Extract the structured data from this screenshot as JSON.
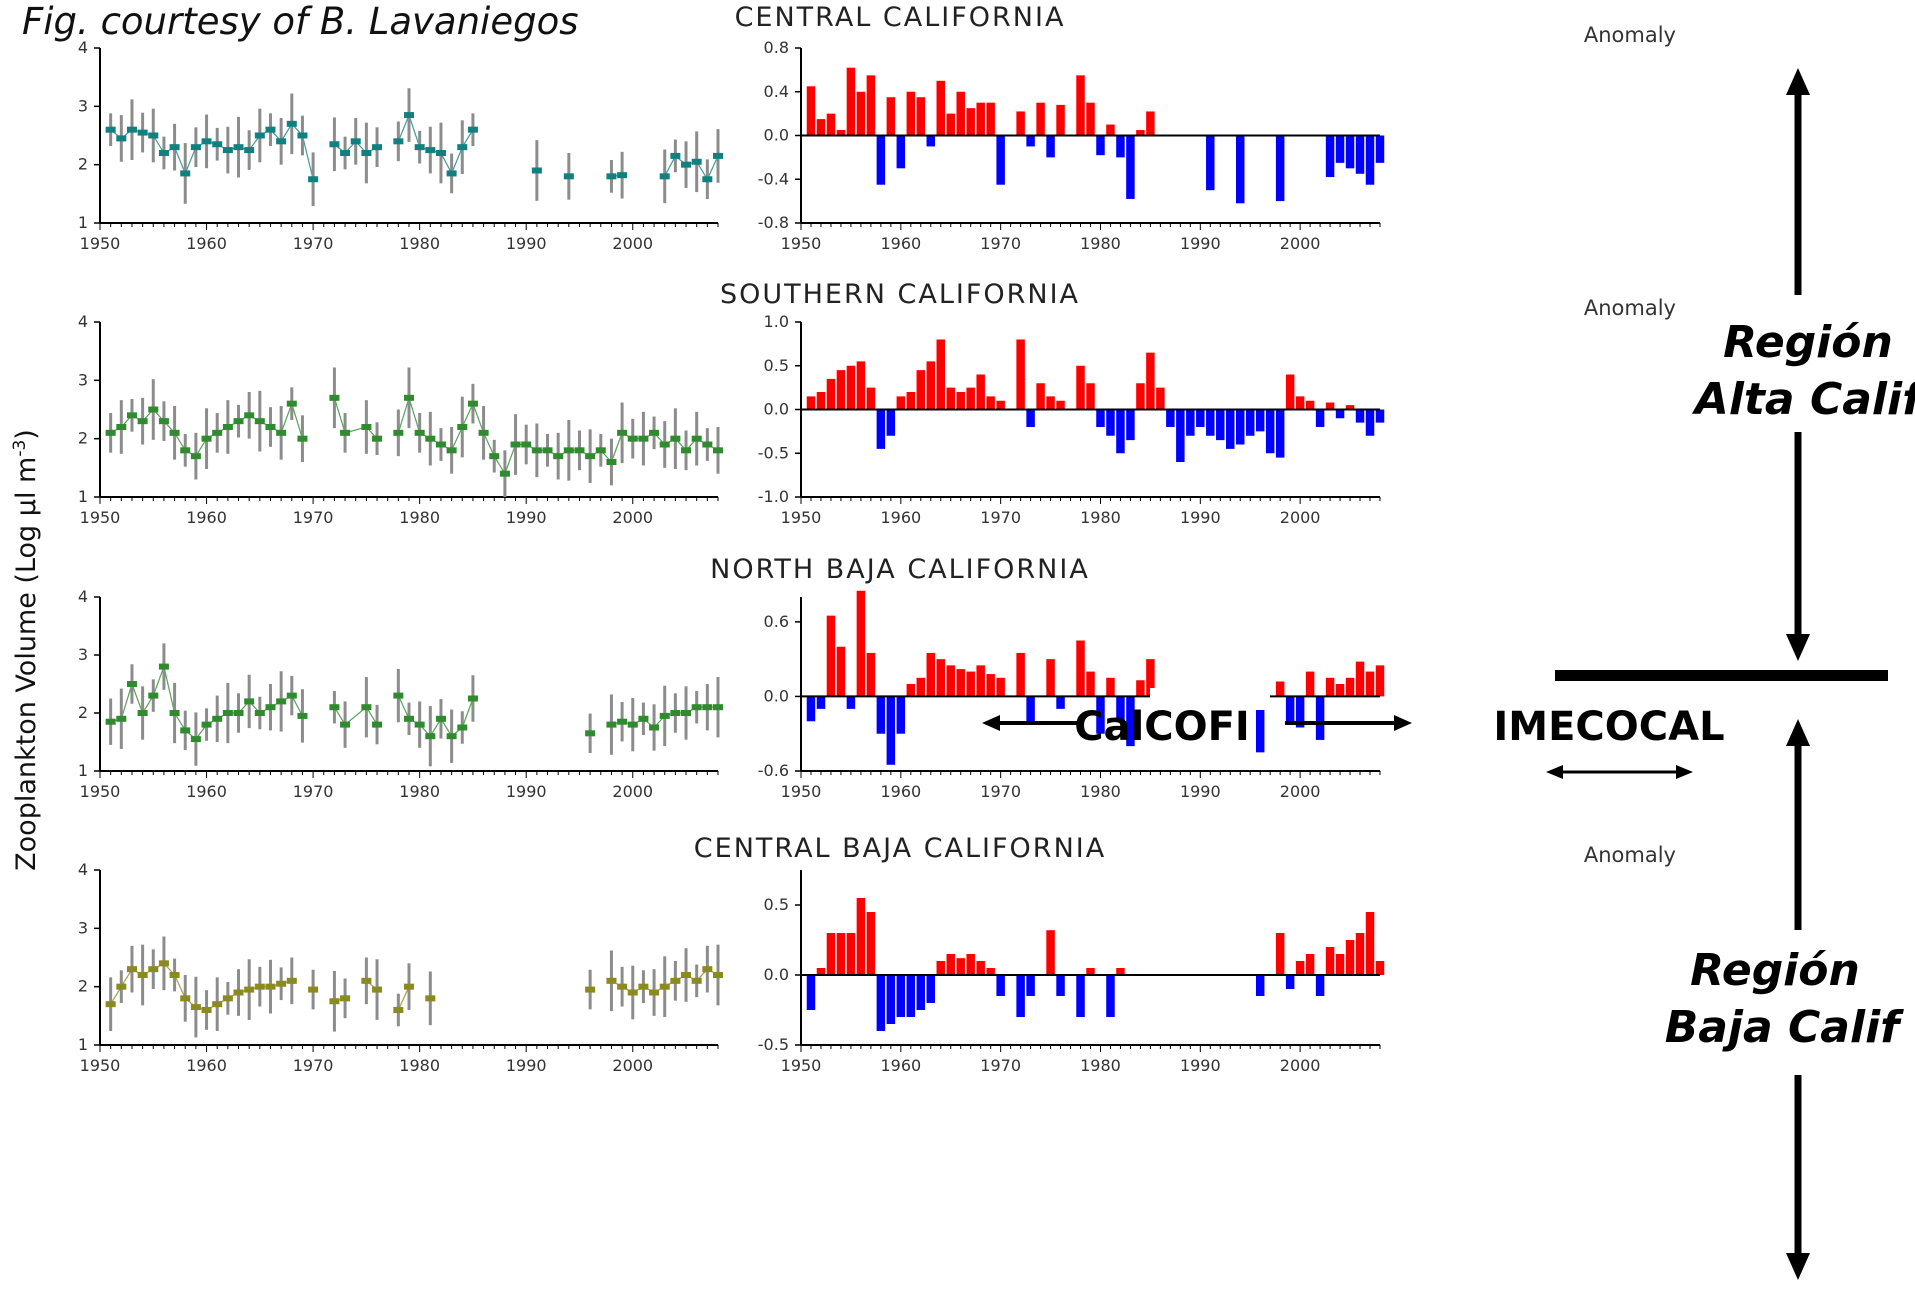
{
  "credit": "Fig. courtesy of B. Lavaniegos",
  "y_axis_label": "Zooplankton Volume  (Log µl m",
  "y_axis_label_sup": "-3",
  "y_axis_label_close": ")",
  "anomaly_label": "Anomaly",
  "annotations": {
    "region_alta_line1": "Región",
    "region_alta_line2": "Alta Calif",
    "region_baja_line1": "Región",
    "region_baja_line2": "Baja Calif",
    "calcofi": "CalCOFI",
    "imecocal": "IMECOCAL"
  },
  "chart_data": [
    {
      "type": "scatter",
      "title": "CENTRAL CALIFORNIA",
      "xlim": [
        1950,
        2008
      ],
      "ylim": [
        1,
        4
      ],
      "xticks": [
        1950,
        1960,
        1970,
        1980,
        1990,
        2000
      ],
      "yticks": [
        1,
        2,
        3,
        4
      ],
      "marker_color": "#118080",
      "errorbars": true,
      "segments": [
        {
          "x": [
            1951,
            1952,
            1953,
            1954,
            1955,
            1956,
            1957,
            1958,
            1959,
            1960,
            1961,
            1962,
            1963,
            1964,
            1965,
            1966,
            1967,
            1968,
            1969,
            1970
          ],
          "y": [
            2.6,
            2.45,
            2.6,
            2.55,
            2.5,
            2.2,
            2.3,
            1.85,
            2.3,
            2.4,
            2.35,
            2.25,
            2.3,
            2.25,
            2.5,
            2.6,
            2.4,
            2.7,
            2.5,
            1.75
          ]
        },
        {
          "x": [
            1972,
            1973,
            1974,
            1975,
            1976
          ],
          "y": [
            2.35,
            2.2,
            2.4,
            2.2,
            2.3
          ]
        },
        {
          "x": [
            1978,
            1979,
            1980,
            1981,
            1982,
            1983,
            1984,
            1985
          ],
          "y": [
            2.4,
            2.85,
            2.3,
            2.25,
            2.2,
            1.85,
            2.3,
            2.6
          ]
        },
        {
          "x": [
            1991
          ],
          "y": [
            1.9
          ]
        },
        {
          "x": [
            1994
          ],
          "y": [
            1.8
          ]
        },
        {
          "x": [
            1998,
            1999
          ],
          "y": [
            1.8,
            1.82
          ]
        },
        {
          "x": [
            2003,
            2004,
            2005,
            2006,
            2007,
            2008
          ],
          "y": [
            1.8,
            2.15,
            2.0,
            2.05,
            1.75,
            2.15
          ]
        }
      ]
    },
    {
      "type": "bar",
      "title": "Anomaly",
      "xlim": [
        1950,
        2008
      ],
      "ylim": [
        -0.8,
        0.8
      ],
      "yticks": [
        -0.8,
        -0.4,
        0.0,
        0.4,
        0.8
      ],
      "xticks": [
        1950,
        1960,
        1970,
        1980,
        1990,
        2000
      ],
      "positive_color": "#ff0000",
      "negative_color": "#0000ff",
      "x": [
        1951,
        1952,
        1953,
        1954,
        1955,
        1956,
        1957,
        1958,
        1959,
        1960,
        1961,
        1962,
        1963,
        1964,
        1965,
        1966,
        1967,
        1968,
        1969,
        1970,
        1972,
        1973,
        1974,
        1975,
        1976,
        1978,
        1979,
        1980,
        1981,
        1982,
        1983,
        1984,
        1985,
        1991,
        1994,
        1998,
        2003,
        2004,
        2005,
        2006,
        2007,
        2008
      ],
      "values": [
        0.45,
        0.15,
        0.2,
        0.05,
        0.62,
        0.4,
        0.55,
        -0.45,
        0.35,
        -0.3,
        0.4,
        0.35,
        -0.1,
        0.5,
        0.2,
        0.4,
        0.25,
        0.3,
        0.3,
        -0.45,
        0.22,
        -0.1,
        0.3,
        -0.2,
        0.28,
        0.55,
        0.3,
        -0.18,
        0.1,
        -0.2,
        -0.58,
        0.05,
        0.22,
        -0.5,
        -0.62,
        -0.6,
        -0.38,
        -0.25,
        -0.3,
        -0.35,
        -0.45,
        -0.25
      ]
    },
    {
      "type": "scatter",
      "title": "SOUTHERN CALIFORNIA",
      "xlim": [
        1950,
        2008
      ],
      "ylim": [
        1,
        4
      ],
      "xticks": [
        1950,
        1960,
        1970,
        1980,
        1990,
        2000
      ],
      "yticks": [
        1,
        2,
        3,
        4
      ],
      "marker_color": "#2e8b2e",
      "errorbars": true,
      "segments": [
        {
          "x": [
            1951,
            1952,
            1953,
            1954,
            1955,
            1956,
            1957,
            1958,
            1959,
            1960,
            1961,
            1962,
            1963,
            1964,
            1965,
            1966,
            1967,
            1968,
            1969
          ],
          "y": [
            2.1,
            2.2,
            2.4,
            2.3,
            2.5,
            2.3,
            2.1,
            1.8,
            1.7,
            2.0,
            2.1,
            2.2,
            2.3,
            2.4,
            2.3,
            2.2,
            2.1,
            2.6,
            2.0
          ]
        },
        {
          "x": [
            1972,
            1973,
            1975,
            1976
          ],
          "y": [
            2.7,
            2.1,
            2.2,
            2.0
          ]
        },
        {
          "x": [
            1978,
            1979,
            1980,
            1981,
            1982,
            1983,
            1984,
            1985,
            1986,
            1987,
            1988,
            1989,
            1990,
            1991,
            1992,
            1993,
            1994,
            1995,
            1996,
            1997,
            1998,
            1999,
            2000,
            2001,
            2002,
            2003,
            2004,
            2005,
            2006,
            2007,
            2008
          ],
          "y": [
            2.1,
            2.7,
            2.1,
            2.0,
            1.9,
            1.8,
            2.2,
            2.6,
            2.1,
            1.7,
            1.4,
            1.9,
            1.9,
            1.8,
            1.8,
            1.7,
            1.8,
            1.8,
            1.7,
            1.8,
            1.6,
            2.1,
            2.0,
            2.0,
            2.1,
            1.9,
            2.0,
            1.8,
            2.0,
            1.9,
            1.8
          ]
        }
      ]
    },
    {
      "type": "bar",
      "title": "Anomaly",
      "xlim": [
        1950,
        2008
      ],
      "ylim": [
        -1.0,
        1.0
      ],
      "yticks": [
        -1.0,
        -0.5,
        0.0,
        0.5,
        1.0
      ],
      "xticks": [
        1950,
        1960,
        1970,
        1980,
        1990,
        2000
      ],
      "positive_color": "#ff0000",
      "negative_color": "#0000ff",
      "x": [
        1951,
        1952,
        1953,
        1954,
        1955,
        1956,
        1957,
        1958,
        1959,
        1960,
        1961,
        1962,
        1963,
        1964,
        1965,
        1966,
        1967,
        1968,
        1969,
        1970,
        1972,
        1973,
        1974,
        1975,
        1976,
        1978,
        1979,
        1980,
        1981,
        1982,
        1983,
        1984,
        1985,
        1986,
        1987,
        1988,
        1989,
        1990,
        1991,
        1992,
        1993,
        1994,
        1995,
        1996,
        1997,
        1998,
        1999,
        2000,
        2001,
        2002,
        2003,
        2004,
        2005,
        2006,
        2007,
        2008
      ],
      "values": [
        0.15,
        0.2,
        0.35,
        0.45,
        0.5,
        0.55,
        0.25,
        -0.45,
        -0.3,
        0.15,
        0.2,
        0.45,
        0.55,
        0.8,
        0.25,
        0.2,
        0.25,
        0.4,
        0.15,
        0.1,
        0.8,
        -0.2,
        0.3,
        0.15,
        0.1,
        0.5,
        0.3,
        -0.2,
        -0.3,
        -0.5,
        -0.35,
        0.3,
        0.65,
        0.25,
        -0.2,
        -0.6,
        -0.3,
        -0.2,
        -0.3,
        -0.35,
        -0.45,
        -0.4,
        -0.3,
        -0.25,
        -0.5,
        -0.55,
        0.4,
        0.15,
        0.1,
        -0.2,
        0.08,
        -0.1,
        0.05,
        -0.15,
        -0.3,
        -0.15
      ]
    },
    {
      "type": "scatter",
      "title": "NORTH BAJA CALIFORNIA",
      "xlim": [
        1950,
        2008
      ],
      "ylim": [
        1,
        4
      ],
      "xticks": [
        1950,
        1960,
        1970,
        1980,
        1990,
        2000
      ],
      "yticks": [
        1,
        2,
        3,
        4
      ],
      "marker_color": "#2e8b2e",
      "errorbars": true,
      "segments": [
        {
          "x": [
            1951,
            1952,
            1953,
            1954,
            1955,
            1956,
            1957,
            1958,
            1959,
            1960,
            1961,
            1962,
            1963,
            1964,
            1965,
            1966,
            1967,
            1968,
            1969
          ],
          "y": [
            1.85,
            1.9,
            2.5,
            2.0,
            2.3,
            2.8,
            2.0,
            1.7,
            1.55,
            1.8,
            1.9,
            2.0,
            2.0,
            2.2,
            2.0,
            2.1,
            2.2,
            2.3,
            1.95
          ]
        },
        {
          "x": [
            1972,
            1973,
            1975,
            1976
          ],
          "y": [
            2.1,
            1.8,
            2.1,
            1.8
          ]
        },
        {
          "x": [
            1978,
            1979,
            1980,
            1981,
            1982,
            1983,
            1984,
            1985
          ],
          "y": [
            2.3,
            1.9,
            1.8,
            1.6,
            1.9,
            1.6,
            1.75,
            2.25
          ]
        },
        {
          "x": [
            1996
          ],
          "y": [
            1.65
          ]
        },
        {
          "x": [
            1998,
            1999,
            2000,
            2001,
            2002,
            2003,
            2004,
            2005,
            2006,
            2007,
            2008
          ],
          "y": [
            1.8,
            1.85,
            1.8,
            1.9,
            1.75,
            1.95,
            2.0,
            2.0,
            2.1,
            2.1,
            2.1
          ]
        }
      ]
    },
    {
      "type": "bar",
      "title": "",
      "xlim": [
        1950,
        2008
      ],
      "ylim": [
        -0.6,
        0.8
      ],
      "yticks": [
        -0.6,
        0.0,
        0.6
      ],
      "xticks": [
        1950,
        1960,
        1970,
        1980,
        1990,
        2000
      ],
      "positive_color": "#ff0000",
      "negative_color": "#0000ff",
      "x": [
        1951,
        1952,
        1953,
        1954,
        1955,
        1956,
        1957,
        1958,
        1959,
        1960,
        1961,
        1962,
        1963,
        1964,
        1965,
        1966,
        1967,
        1968,
        1969,
        1970,
        1972,
        1973,
        1975,
        1976,
        1978,
        1979,
        1980,
        1981,
        1982,
        1983,
        1984,
        1985,
        1996,
        1998,
        1999,
        2000,
        2001,
        2002,
        2003,
        2004,
        2005,
        2006,
        2007,
        2008
      ],
      "values": [
        -0.2,
        -0.1,
        0.65,
        0.4,
        -0.1,
        0.85,
        0.35,
        -0.3,
        -0.55,
        -0.3,
        0.1,
        0.15,
        0.35,
        0.3,
        0.25,
        0.22,
        0.2,
        0.25,
        0.18,
        0.15,
        0.35,
        -0.2,
        0.3,
        -0.1,
        0.45,
        0.2,
        -0.3,
        0.15,
        -0.2,
        -0.4,
        0.13,
        0.3,
        -0.45,
        0.12,
        -0.2,
        -0.25,
        0.2,
        -0.35,
        0.15,
        0.1,
        0.15,
        0.28,
        0.2,
        0.25
      ]
    },
    {
      "type": "scatter",
      "title": "CENTRAL BAJA CALIFORNIA",
      "xlim": [
        1950,
        2008
      ],
      "ylim": [
        1,
        4
      ],
      "xticks": [
        1950,
        1960,
        1970,
        1980,
        1990,
        2000
      ],
      "yticks": [
        1,
        2,
        3,
        4
      ],
      "marker_color": "#8a8a1e",
      "errorbars": true,
      "segments": [
        {
          "x": [
            1951,
            1952,
            1953,
            1954,
            1955,
            1956,
            1957,
            1958,
            1959,
            1960,
            1961,
            1962,
            1963,
            1964,
            1965,
            1966,
            1967,
            1968
          ],
          "y": [
            1.7,
            2.0,
            2.3,
            2.2,
            2.3,
            2.4,
            2.2,
            1.8,
            1.65,
            1.6,
            1.7,
            1.8,
            1.9,
            1.95,
            2.0,
            2.0,
            2.05,
            2.1
          ]
        },
        {
          "x": [
            1970
          ],
          "y": [
            1.95
          ]
        },
        {
          "x": [
            1972,
            1973
          ],
          "y": [
            1.75,
            1.8
          ]
        },
        {
          "x": [
            1975,
            1976
          ],
          "y": [
            2.1,
            1.95
          ]
        },
        {
          "x": [
            1978,
            1979
          ],
          "y": [
            1.6,
            2.0
          ]
        },
        {
          "x": [
            1981
          ],
          "y": [
            1.8
          ]
        },
        {
          "x": [
            1996
          ],
          "y": [
            1.95
          ]
        },
        {
          "x": [
            1998,
            1999,
            2000,
            2001,
            2002,
            2003,
            2004,
            2005,
            2006,
            2007,
            2008
          ],
          "y": [
            2.1,
            2.0,
            1.9,
            2.0,
            1.9,
            2.0,
            2.1,
            2.2,
            2.1,
            2.3,
            2.2
          ]
        }
      ]
    },
    {
      "type": "bar",
      "title": "Anomaly",
      "xlim": [
        1950,
        2008
      ],
      "ylim": [
        -0.5,
        0.75
      ],
      "yticks": [
        -0.5,
        0.0,
        0.5
      ],
      "xticks": [
        1950,
        1960,
        1970,
        1980,
        1990,
        2000
      ],
      "positive_color": "#ff0000",
      "negative_color": "#0000ff",
      "x": [
        1951,
        1952,
        1953,
        1954,
        1955,
        1956,
        1957,
        1958,
        1959,
        1960,
        1961,
        1962,
        1963,
        1964,
        1965,
        1966,
        1967,
        1968,
        1969,
        1970,
        1972,
        1973,
        1975,
        1976,
        1978,
        1979,
        1981,
        1982,
        1996,
        1998,
        1999,
        2000,
        2001,
        2002,
        2003,
        2004,
        2005,
        2006,
        2007,
        2008
      ],
      "values": [
        -0.25,
        0.05,
        0.3,
        0.3,
        0.3,
        0.55,
        0.45,
        -0.4,
        -0.35,
        -0.3,
        -0.3,
        -0.25,
        -0.2,
        0.1,
        0.15,
        0.12,
        0.15,
        0.1,
        0.05,
        -0.15,
        -0.3,
        -0.15,
        0.32,
        -0.15,
        -0.3,
        0.05,
        -0.3,
        0.05,
        -0.15,
        0.3,
        -0.1,
        0.1,
        0.15,
        -0.15,
        0.2,
        0.15,
        0.25,
        0.3,
        0.45,
        0.1
      ]
    }
  ]
}
